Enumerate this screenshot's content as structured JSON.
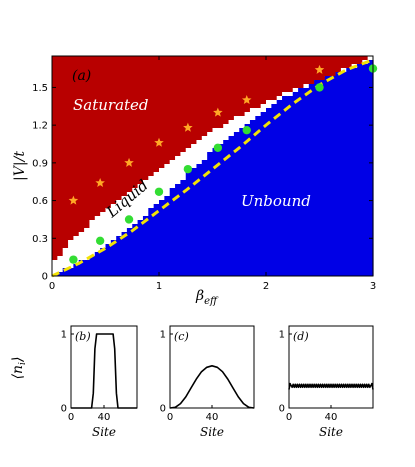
{
  "chart_data": [
    {
      "type": "heatmap",
      "panel": "(a)",
      "xlabel": "β_eff",
      "ylabel": "|V|/t",
      "xlim": [
        0,
        3
      ],
      "ylim": [
        0,
        1.75
      ],
      "xticks": [
        "0",
        "1",
        "2",
        "3"
      ],
      "yticks": [
        "0",
        "0.3",
        "0.6",
        "0.9",
        "1.2",
        "1.5"
      ],
      "regions": [
        {
          "label": "Saturated",
          "color": "#b80000"
        },
        {
          "label": "Liquid",
          "color": "#ffffff"
        },
        {
          "label": "Unbound",
          "color": "#0000e6"
        }
      ],
      "boundary_upper": {
        "x": [
          0,
          0.2,
          0.4,
          0.6,
          0.8,
          1.0,
          1.2,
          1.4,
          1.6,
          1.8,
          2.0,
          2.2,
          2.5,
          2.8,
          3.0
        ],
        "y": [
          0.1,
          0.3,
          0.45,
          0.58,
          0.72,
          0.85,
          0.98,
          1.1,
          1.2,
          1.3,
          1.38,
          1.46,
          1.56,
          1.67,
          1.75
        ]
      },
      "boundary_lower": {
        "x": [
          0,
          0.2,
          0.4,
          0.6,
          0.8,
          1.0,
          1.2,
          1.4,
          1.6,
          1.8,
          2.0,
          2.2,
          2.5,
          2.8,
          3.0
        ],
        "y": [
          0.0,
          0.08,
          0.18,
          0.3,
          0.44,
          0.58,
          0.75,
          0.92,
          1.06,
          1.2,
          1.32,
          1.43,
          1.56,
          1.66,
          1.72
        ]
      },
      "series": [
        {
          "marker": "star",
          "color": "#ffa726",
          "x": [
            0.2,
            0.45,
            0.72,
            1.0,
            1.27,
            1.55,
            1.82,
            2.5
          ],
          "y": [
            0.6,
            0.74,
            0.9,
            1.06,
            1.18,
            1.3,
            1.4,
            1.64
          ]
        },
        {
          "marker": "circle",
          "color": "#33dd33",
          "x": [
            0.2,
            0.45,
            0.72,
            1.0,
            1.27,
            1.55,
            1.82,
            2.5,
            3.0
          ],
          "y": [
            0.13,
            0.28,
            0.45,
            0.67,
            0.85,
            1.02,
            1.16,
            1.5,
            1.65
          ]
        },
        {
          "line": "dashed",
          "color": "#f2e205",
          "x": [
            0,
            0.25,
            0.5,
            0.75,
            1.0,
            1.25,
            1.5,
            1.75,
            2.0,
            2.25,
            2.5,
            2.75,
            3.0
          ],
          "y": [
            0.0,
            0.1,
            0.22,
            0.36,
            0.52,
            0.68,
            0.85,
            1.02,
            1.2,
            1.37,
            1.52,
            1.64,
            1.72
          ]
        }
      ]
    },
    {
      "type": "line",
      "panel": "(b)",
      "xlabel": "Site",
      "ylabel": "⟨n_i⟩",
      "xlim": [
        0,
        80
      ],
      "ylim": [
        0,
        1
      ],
      "xticks": [
        "0",
        "40"
      ],
      "yticks": [
        "0",
        "1"
      ],
      "x": [
        0,
        25,
        27,
        29,
        31,
        51,
        53,
        55,
        57,
        80
      ],
      "y": [
        0,
        0,
        0.2,
        0.8,
        1,
        1,
        0.8,
        0.2,
        0,
        0
      ]
    },
    {
      "type": "line",
      "panel": "(c)",
      "xlabel": "Site",
      "ylabel": "",
      "xlim": [
        0,
        80
      ],
      "ylim": [
        0,
        1
      ],
      "xticks": [
        "0",
        "40"
      ],
      "yticks": [
        "0",
        "1"
      ],
      "x": [
        0,
        5,
        10,
        15,
        20,
        25,
        30,
        35,
        40,
        45,
        50,
        55,
        60,
        65,
        70,
        75,
        80
      ],
      "y": [
        0,
        0.01,
        0.06,
        0.15,
        0.27,
        0.39,
        0.49,
        0.55,
        0.57,
        0.55,
        0.49,
        0.39,
        0.27,
        0.15,
        0.06,
        0.01,
        0
      ]
    },
    {
      "type": "line",
      "panel": "(d)",
      "xlabel": "Site",
      "ylabel": "",
      "xlim": [
        0,
        80
      ],
      "ylim": [
        0,
        1
      ],
      "xticks": [
        "0",
        "40"
      ],
      "yticks": [
        "0",
        "1"
      ],
      "x": [
        0,
        1,
        2,
        78,
        79,
        80
      ],
      "y": [
        0.25,
        0.33,
        0.3,
        0.3,
        0.33,
        0.25
      ],
      "oscillation_amplitude": 0.02
    }
  ],
  "text": {
    "panel_a": "(a)",
    "saturated": "Saturated",
    "liquid": "Liquid",
    "unbound": "Unbound",
    "ylabel_main": "|V|/t",
    "xlabel_main": "β",
    "xlabel_main_sub": "eff",
    "panel_b": "(b)",
    "panel_c": "(c)",
    "panel_d": "(d)",
    "ylabel_sub": "⟨n",
    "ylabel_sub_i": "i",
    "ylabel_sub_close": "⟩",
    "site": "Site"
  }
}
